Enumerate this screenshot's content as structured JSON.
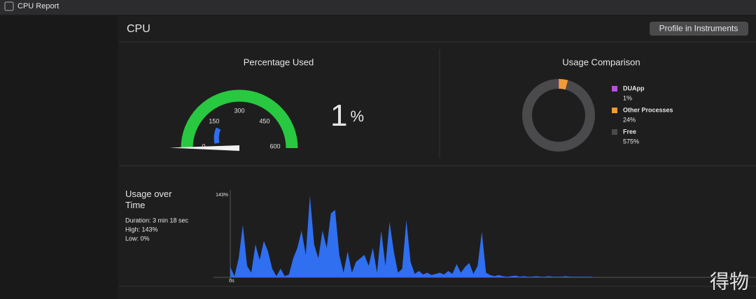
{
  "window": {
    "title": "CPU Report"
  },
  "header": {
    "title": "CPU",
    "button": "Profile in Instruments"
  },
  "gauge": {
    "title": "Percentage Used",
    "ticks": [
      0,
      150,
      300,
      450,
      600
    ],
    "range": [
      0,
      600
    ],
    "value": 1,
    "unit": "%"
  },
  "comparison": {
    "title": "Usage Comparison",
    "segments": [
      {
        "name": "DUApp",
        "value": 1,
        "label": "1%",
        "color": "#b84fe0"
      },
      {
        "name": "Other Processes",
        "value": 24,
        "label": "24%",
        "color": "#f29a38"
      },
      {
        "name": "Free",
        "value": 575,
        "label": "575%",
        "color": "#4a4a4c"
      }
    ]
  },
  "timeline": {
    "title": "Usage over Time",
    "duration": "Duration: 3 min 18 sec",
    "high": "High: 143%",
    "low": "Low: 0%",
    "ylim": [
      0,
      143
    ],
    "yticks": [
      {
        "value": 143,
        "label": "143%"
      }
    ],
    "xlabel": "0s",
    "color": "#2f6ff0",
    "values": [
      18,
      2,
      33,
      91,
      20,
      8,
      57,
      30,
      63,
      45,
      15,
      2,
      15,
      2,
      5,
      33,
      51,
      81,
      39,
      142,
      57,
      33,
      81,
      51,
      111,
      117,
      39,
      8,
      45,
      8,
      27,
      33,
      39,
      20,
      51,
      8,
      81,
      20,
      96,
      45,
      8,
      15,
      99,
      27,
      6,
      11,
      5,
      8,
      4,
      6,
      8,
      5,
      11,
      6,
      23,
      8,
      18,
      25,
      6,
      20,
      79,
      8,
      4,
      2,
      4,
      2,
      1,
      2,
      3,
      1,
      2,
      1,
      1,
      2,
      1,
      1,
      2,
      1,
      1,
      1,
      2,
      1,
      1,
      1,
      1,
      1,
      1,
      0,
      0,
      0
    ]
  },
  "watermark": "得物"
}
